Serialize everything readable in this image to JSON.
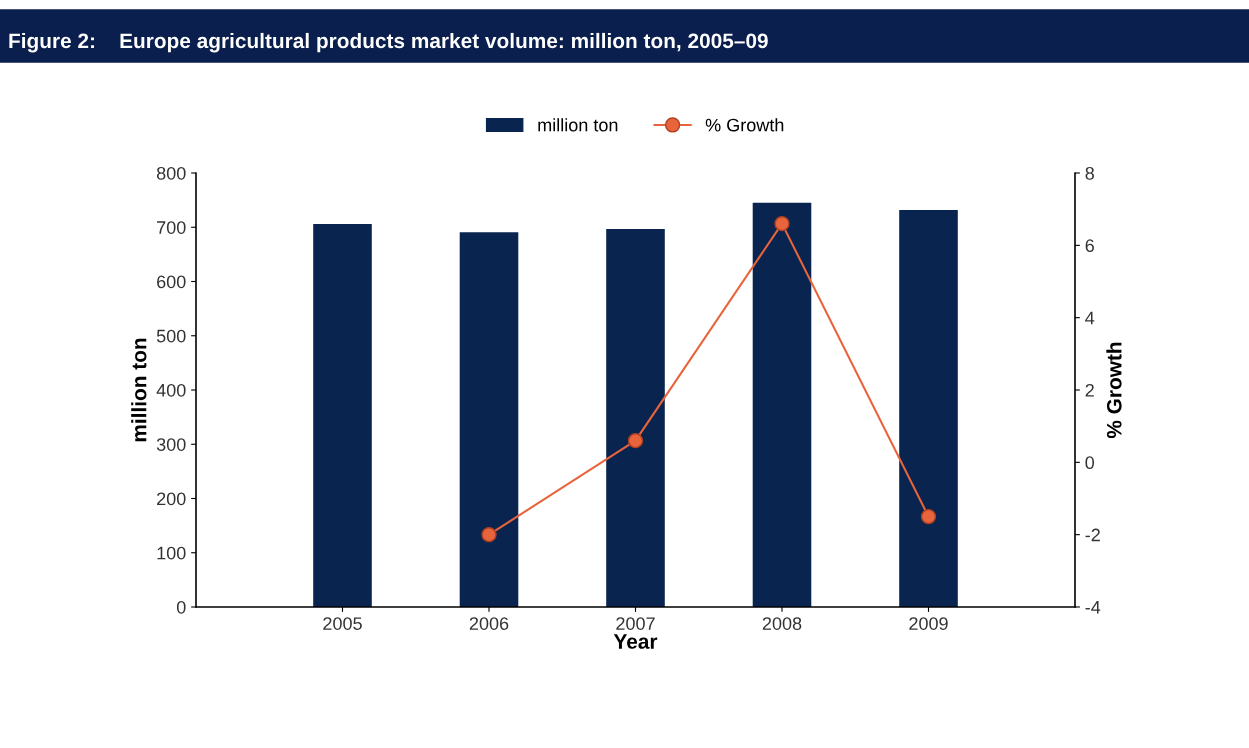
{
  "chart_data": {
    "type": "bar",
    "title": "Figure 2:    Europe agricultural products market volume: million ton, 2005–09",
    "xlabel": "Year",
    "ylabel": "million ton",
    "y2label": "% Growth",
    "categories": [
      "2005",
      "2006",
      "2007",
      "2008",
      "2009"
    ],
    "series": [
      {
        "name": "million ton",
        "color": "#0a2450",
        "values": [
          706,
          691,
          697,
          745,
          732
        ]
      },
      {
        "name": "% Growth",
        "type": "line",
        "axis": "y2",
        "color": "#e8643c",
        "marker": "circle",
        "values": [
          null,
          -2.0,
          0.6,
          6.6,
          -1.5
        ]
      }
    ],
    "ylim": [
      0,
      800
    ],
    "yticks": [
      0,
      100,
      200,
      300,
      400,
      500,
      600,
      700,
      800
    ],
    "y2lim": [
      -4,
      8
    ],
    "y2ticks": [
      -4,
      -2,
      0,
      2,
      4,
      6,
      8
    ],
    "grid": false,
    "legend": "top"
  }
}
